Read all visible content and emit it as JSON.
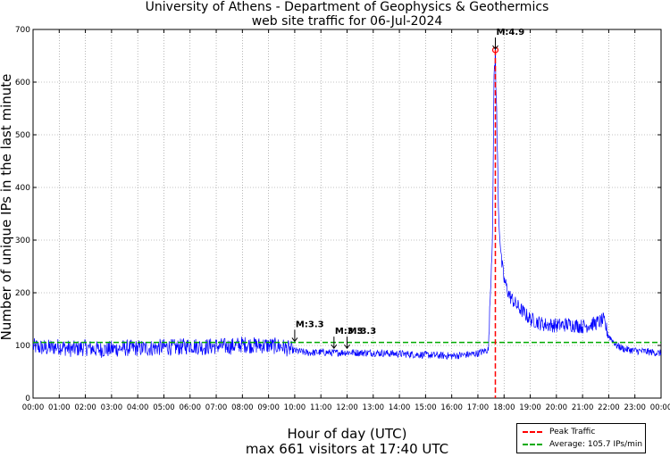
{
  "chart_data": {
    "type": "line",
    "title": "University of Athens - Department of Geophysics & Geothermics",
    "subtitle": "web site traffic for 06-Jul-2024",
    "xlabel": "Hour of day (UTC)",
    "ylabel": "Number of unique IPs in the last minute",
    "footer": "max 661 visitors at 17:40 UTC",
    "xlim": [
      0,
      24
    ],
    "ylim": [
      0,
      700
    ],
    "yticks": [
      0,
      100,
      200,
      300,
      400,
      500,
      600,
      700
    ],
    "xtick_labels": [
      "00:00",
      "01:00",
      "02:00",
      "03:00",
      "04:00",
      "05:00",
      "06:00",
      "07:00",
      "08:00",
      "09:00",
      "10:00",
      "11:00",
      "12:00",
      "13:00",
      "14:00",
      "15:00",
      "16:00",
      "17:00",
      "18:00",
      "19:00",
      "20:00",
      "21:00",
      "22:00",
      "23:00",
      "00:00"
    ],
    "grid": true,
    "series": [
      {
        "name": "Traffic",
        "color": "#0000ff",
        "x": [
          0,
          0.5,
          1,
          1.5,
          2,
          2.5,
          3,
          3.5,
          4,
          4.5,
          5,
          5.5,
          6,
          6.5,
          7,
          7.5,
          8,
          8.5,
          9,
          9.5,
          10,
          10.5,
          11,
          11.5,
          12,
          12.5,
          13,
          13.5,
          14,
          14.5,
          15,
          15.5,
          16,
          16.5,
          17,
          17.4,
          17.55,
          17.62,
          17.667,
          17.72,
          17.8,
          17.9,
          18,
          18.2,
          18.5,
          19,
          19.5,
          20,
          20.5,
          21,
          21.5,
          21.8,
          22,
          22.3,
          22.6,
          23,
          23.5,
          24
        ],
        "y": [
          98,
          95,
          98,
          93,
          96,
          92,
          93,
          95,
          95,
          95,
          97,
          96,
          100,
          97,
          99,
          98,
          102,
          100,
          100,
          98,
          90,
          86,
          87,
          86,
          87,
          86,
          86,
          85,
          84,
          83,
          82,
          81,
          80,
          82,
          85,
          92,
          300,
          600,
          661,
          520,
          340,
          260,
          225,
          195,
          175,
          150,
          140,
          138,
          140,
          136,
          142,
          148,
          118,
          100,
          93,
          90,
          88,
          85
        ]
      }
    ],
    "annotations": [
      {
        "text": "M:3.3",
        "x": 10.0,
        "y": 106
      },
      {
        "text": "M:3.3",
        "x": 11.5,
        "y": 93
      },
      {
        "text": "M:3.3",
        "x": 12.0,
        "y": 93
      },
      {
        "text": "M:4.9",
        "x": 17.667,
        "y": 661
      }
    ],
    "peak": {
      "x": 17.667,
      "y": 661
    },
    "average": 105.7,
    "legend": {
      "position": "bottom-right",
      "peak_label": "Peak Traffic",
      "average_label": "Average: 105.7 IPs/min",
      "peak_color": "#ff0000",
      "average_color": "#00aa00"
    }
  }
}
